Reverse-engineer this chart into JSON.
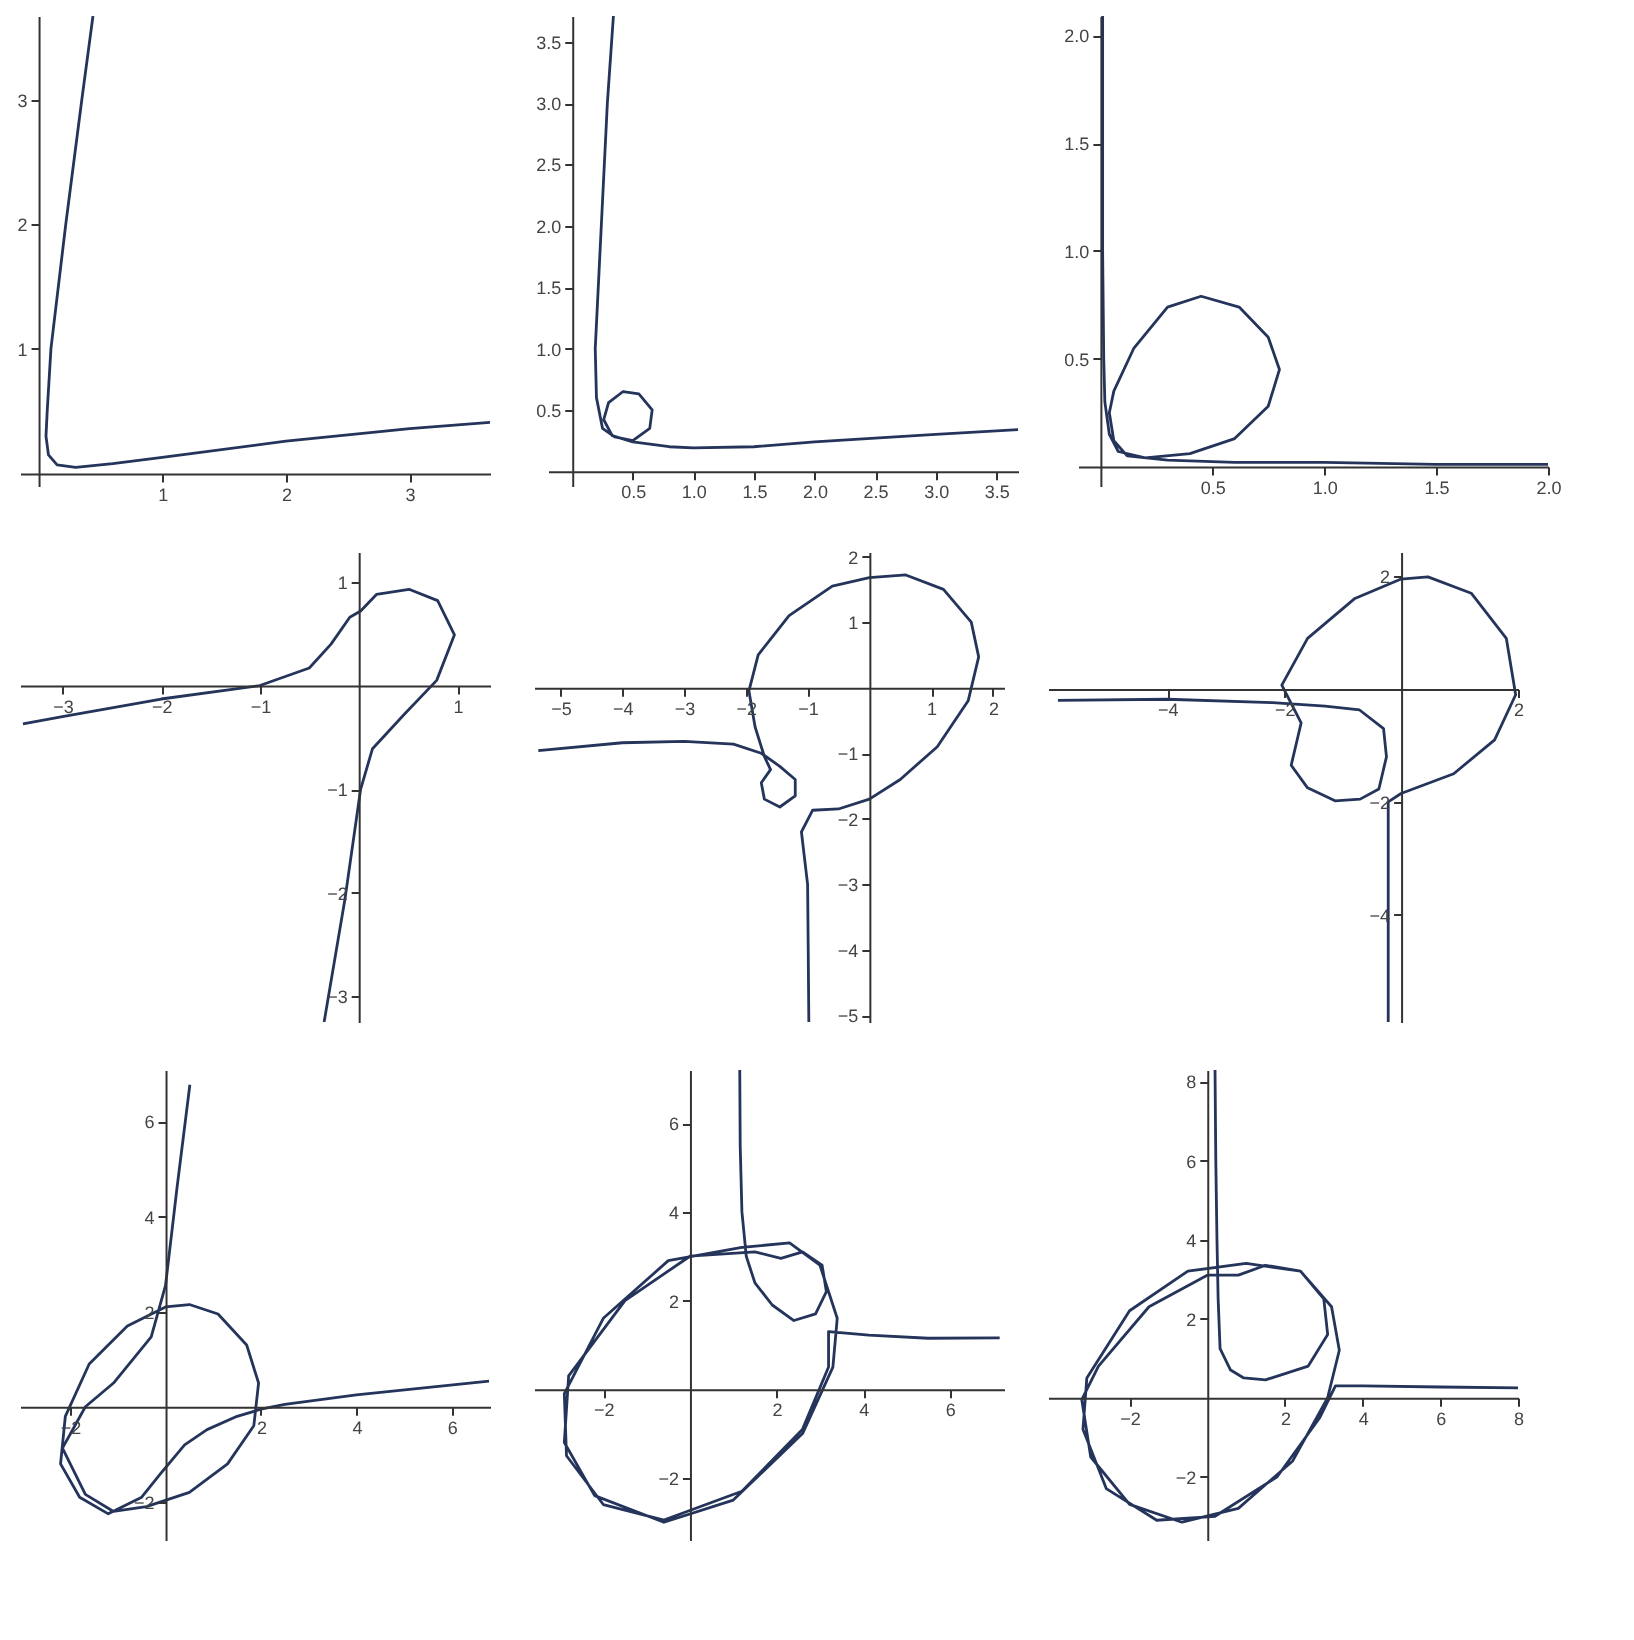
{
  "chart_data": [
    {
      "type": "line",
      "color": "#24345a",
      "xlim": [
        -0.15,
        3.65
      ],
      "ylim": [
        -0.1,
        3.67
      ],
      "xticks": [
        1,
        2,
        3
      ],
      "yticks": [
        1,
        2,
        3
      ],
      "x": [
        0.44,
        0.35,
        0.22,
        0.1,
        0.07,
        0.06,
        0.08,
        0.15,
        0.3,
        0.6,
        1,
        2,
        3,
        3.65
      ],
      "values": [
        3.67,
        3,
        2,
        1,
        0.5,
        0.3,
        0.15,
        0.07,
        0.05,
        0.08,
        0.13,
        0.26,
        0.36,
        0.41
      ]
    },
    {
      "type": "line",
      "color": "#24345a",
      "xlim": [
        -0.2,
        3.68
      ],
      "ylim": [
        -0.12,
        3.71
      ],
      "xticks": [
        0.5,
        {
          "value": 1,
          "label": "1.0"
        },
        1.5,
        {
          "value": 2,
          "label": "2.0"
        },
        2.5,
        {
          "value": 3,
          "label": "3.0"
        },
        3.5
      ],
      "yticks": [
        0.5,
        {
          "value": 1,
          "label": "1.0"
        },
        1.5,
        {
          "value": 2,
          "label": "2.0"
        },
        2.5,
        {
          "value": 3,
          "label": "3.0"
        },
        3.5
      ],
      "x": [
        0.34,
        0.29,
        0.24,
        0.19,
        0.2,
        0.25,
        0.35,
        0.5,
        0.64,
        0.66,
        0.55,
        0.42,
        0.3,
        0.26,
        0.33,
        0.5,
        0.8,
        1.0,
        1.5,
        2,
        3,
        3.68
      ],
      "values": [
        3.71,
        3,
        2,
        1,
        0.6,
        0.35,
        0.28,
        0.25,
        0.35,
        0.5,
        0.63,
        0.65,
        0.56,
        0.42,
        0.29,
        0.24,
        0.2,
        0.19,
        0.2,
        0.24,
        0.3,
        0.34
      ]
    },
    {
      "type": "line",
      "color": "#24345a",
      "xlim": [
        -0.1,
        2.0
      ],
      "ylim": [
        -0.09,
        2.09
      ],
      "xticks": [
        0.5,
        {
          "value": 1,
          "label": "1.0"
        },
        1.5,
        {
          "value": 2,
          "label": "2.0"
        }
      ],
      "yticks": [
        0.5,
        {
          "value": 1,
          "label": "1.0"
        },
        1.5,
        {
          "value": 2,
          "label": "2.0"
        }
      ],
      "x": [
        0.01,
        0.01,
        0.015,
        0.02,
        0.04,
        0.08,
        0.2,
        0.4,
        0.6,
        0.75,
        0.8,
        0.75,
        0.62,
        0.45,
        0.3,
        0.15,
        0.06,
        0.04,
        0.06,
        0.12,
        0.3,
        0.6,
        1,
        1.5,
        2.0
      ],
      "values": [
        2.09,
        1,
        0.5,
        0.3,
        0.15,
        0.07,
        0.04,
        0.06,
        0.13,
        0.28,
        0.45,
        0.6,
        0.74,
        0.79,
        0.74,
        0.55,
        0.35,
        0.25,
        0.12,
        0.05,
        0.03,
        0.02,
        0.02,
        0.01,
        0.01
      ]
    },
    {
      "type": "line",
      "color": "#24345a",
      "xlim": [
        -3.43,
        1.33
      ],
      "ylim": [
        -3.25,
        1.29
      ],
      "xticks": [
        -3,
        -2,
        -1,
        1
      ],
      "yticks": [
        -3,
        -2,
        -1,
        1
      ],
      "x": [
        -3.4,
        -3,
        -2,
        -1,
        -0.5,
        -0.28,
        -0.09,
        0.02,
        0.18,
        0.51,
        0.8,
        0.97,
        0.79,
        0.46,
        0.14,
        0.02,
        -0.14,
        -0.35
      ],
      "values": [
        -0.37,
        -0.3,
        -0.13,
        0,
        0.17,
        0.4,
        0.66,
        0.72,
        0.88,
        0.93,
        0.82,
        0.49,
        0.05,
        -0.28,
        -0.61,
        -1.0,
        -2.07,
        -3.25
      ]
    },
    {
      "type": "line",
      "color": "#24345a",
      "xlim": [
        -5.43,
        2.18
      ],
      "ylim": [
        -5.1,
        2.07
      ],
      "xticks": [
        -5,
        -4,
        -3,
        -2,
        -1,
        1,
        2
      ],
      "yticks": [
        -5,
        -4,
        -3,
        -2,
        -1,
        1,
        2
      ],
      "x": [
        -5.36,
        -4,
        -3,
        -2.2,
        -1.75,
        -1.45,
        -1.2,
        -1.2,
        -1.45,
        -1.7,
        -1.75,
        -1.6,
        -1.7,
        -1.85,
        -1.95,
        -1.8,
        -1.3,
        -0.6,
        0,
        0.59,
        1.2,
        1.65,
        1.77,
        1.6,
        1.1,
        0.5,
        0,
        -0.5,
        -0.92,
        -1.1,
        -1.0,
        -0.99,
        -0.98
      ],
      "values": [
        -0.96,
        -0.84,
        -0.82,
        -0.86,
        -1.0,
        -1.2,
        -1.4,
        -1.65,
        -1.82,
        -1.7,
        -1.45,
        -1.25,
        -1.05,
        -0.6,
        -0.05,
        0.5,
        1.1,
        1.55,
        1.68,
        1.72,
        1.5,
        1.0,
        0.47,
        -0.2,
        -0.9,
        -1.4,
        -1.7,
        -1.85,
        -1.87,
        -2.2,
        -3,
        -4,
        -5.1
      ]
    },
    {
      "type": "line",
      "color": "#24345a",
      "xlim": [
        -6.04,
        2.0
      ],
      "ylim": [
        -5.9,
        2.43
      ],
      "xticks": [
        -4,
        -2,
        2
      ],
      "yticks": [
        -4,
        -2,
        2
      ],
      "x": [
        -5.87,
        -4,
        -2.2,
        -1.3,
        -0.71,
        -0.3,
        -0.25,
        -0.38,
        -0.7,
        -1.13,
        -1.6,
        -1.88,
        -1.71,
        -2.04,
        -1.6,
        -0.8,
        0,
        0.46,
        1.2,
        1.8,
        1.96,
        1.6,
        0.9,
        0,
        -0.22,
        -0.22,
        -0.22
      ],
      "values": [
        -0.2,
        -0.18,
        -0.24,
        -0.3,
        -0.37,
        -0.7,
        -1.2,
        -1.77,
        -1.95,
        -1.98,
        -1.75,
        -1.35,
        -0.6,
        0.07,
        0.9,
        1.6,
        1.95,
        1.99,
        1.7,
        0.9,
        -0.1,
        -0.9,
        -1.5,
        -1.85,
        -2.0,
        -3,
        -5.9
      ]
    },
    {
      "type": "line",
      "color": "#24345a",
      "xlim": [
        -3.05,
        6.8
      ],
      "ylim": [
        -2.8,
        7.08
      ],
      "xticks": [
        -2,
        2,
        4,
        6
      ],
      "yticks": [
        -2,
        2,
        4,
        6
      ],
      "x": [
        0.51,
        0.24,
        0,
        -0.3,
        -1.09,
        -1.68,
        -2.16,
        -1.68,
        -1.09,
        -0.4,
        0.5,
        1.3,
        1.85,
        1.95,
        1.7,
        1.1,
        0.5,
        0,
        -0.8,
        -1.6,
        -2.1,
        -2.2,
        -1.8,
        -1.2,
        -0.5,
        -0.1,
        0.4,
        0.87,
        1.5,
        2,
        2.5,
        4,
        6.78
      ],
      "values": [
        6.77,
        4.6,
        2.55,
        1.47,
        0.5,
        0,
        -0.87,
        -1.84,
        -2.2,
        -2.1,
        -1.8,
        -1.2,
        -0.4,
        0.5,
        1.3,
        1.95,
        2.15,
        2.1,
        1.7,
        0.9,
        -0.2,
        -1.2,
        -1.9,
        -2.25,
        -1.9,
        -1.4,
        -0.8,
        -0.48,
        -0.2,
        -0.05,
        0.05,
        0.25,
        0.54
      ]
    },
    {
      "type": "line",
      "color": "#24345a",
      "xlim": [
        -3.6,
        7.25
      ],
      "ylim": [
        -3.4,
        7.2
      ],
      "xticks": [
        -2,
        2,
        4,
        6
      ],
      "yticks": [
        -2,
        2,
        4,
        6
      ],
      "x": [
        1.15,
        1.16,
        1.2,
        1.3,
        1.5,
        1.9,
        2.4,
        2.9,
        3.15,
        3.05,
        2.6,
        2.1,
        1.5,
        0,
        -1.5,
        -2.8,
        -2.9,
        -2.2,
        -0.6,
        1.0,
        2.6,
        3.3,
        3.4,
        3.0,
        2.3,
        1.2,
        -0.5,
        -2.0,
        -2.9,
        -2.85,
        -2.0,
        -0.6,
        1.2,
        2.6,
        3.2,
        3.2,
        4.13,
        5.5,
        7.15
      ],
      "values": [
        7.2,
        5.5,
        4.0,
        3.0,
        2.4,
        1.9,
        1.55,
        1.7,
        2.2,
        2.8,
        3.1,
        2.95,
        3.1,
        3.0,
        2.0,
        0.3,
        -1.2,
        -2.4,
        -3.0,
        -2.5,
        -1.0,
        0.5,
        1.6,
        2.8,
        3.3,
        3.2,
        2.9,
        1.6,
        -0.1,
        -1.5,
        -2.6,
        -2.95,
        -2.3,
        -0.9,
        0.5,
        1.3,
        1.22,
        1.15,
        1.16
      ]
    },
    {
      "type": "line",
      "color": "#24345a",
      "xlim": [
        -4.1,
        8.0
      ],
      "ylim": [
        -3.6,
        8.29
      ],
      "xticks": [
        -2,
        2,
        4,
        6,
        8
      ],
      "yticks": [
        -2,
        2,
        4,
        6,
        8
      ],
      "x": [
        0.2,
        0.22,
        0.25,
        0.28,
        0.33,
        0.6,
        0.94,
        1.5,
        2.6,
        3.1,
        3.0,
        2.4,
        1.5,
        0.8,
        0,
        -1.5,
        -2.8,
        -3.23,
        -3.0,
        -2.0,
        -0.65,
        0.8,
        2.2,
        3.1,
        3.4,
        3.2,
        2.4,
        1.0,
        -0.5,
        -2.0,
        -3.1,
        -3.2,
        -2.6,
        -1.3,
        0.2,
        1.8,
        2.9,
        3.3,
        4,
        6,
        8
      ],
      "values": [
        8.29,
        6,
        4,
        2.5,
        1.24,
        0.7,
        0.5,
        0.45,
        0.8,
        1.6,
        2.5,
        3.2,
        3.35,
        3.1,
        3.1,
        2.3,
        0.8,
        -0.05,
        -1.5,
        -2.7,
        -3.15,
        -2.8,
        -1.6,
        0,
        1.2,
        2.3,
        3.2,
        3.4,
        3.2,
        2.2,
        0.5,
        -0.8,
        -2.3,
        -3.1,
        -3.0,
        -2.0,
        -0.5,
        0.3,
        0.3,
        0.27,
        0.25
      ]
    }
  ]
}
